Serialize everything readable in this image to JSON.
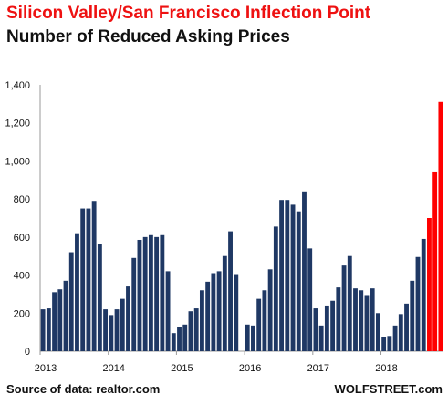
{
  "chart_data": {
    "type": "bar",
    "title": "Silicon Valley/San Francisco Inflection Point",
    "subtitle": "Number of Reduced Asking Prices",
    "source": "Source of data: realtor.com",
    "brand": "WOLFSTREET.com",
    "ylim": [
      0,
      1400
    ],
    "y_ticks": [
      0,
      200,
      400,
      600,
      800,
      1000,
      1200,
      1400
    ],
    "y_tick_labels": [
      "0",
      "200",
      "400",
      "600",
      "800",
      "1,000",
      "1,200",
      "1,400"
    ],
    "x_tick_labels": [
      "2013",
      "2014",
      "2015",
      "2016",
      "2017",
      "2018"
    ],
    "grid": false,
    "colors": {
      "normal": "#1f3864",
      "highlight": "#ff0000"
    },
    "values": [
      220,
      225,
      310,
      325,
      370,
      520,
      620,
      750,
      750,
      790,
      565,
      220,
      190,
      220,
      275,
      340,
      490,
      585,
      600,
      610,
      600,
      610,
      420,
      95,
      125,
      140,
      210,
      225,
      320,
      365,
      410,
      420,
      500,
      630,
      405,
      0,
      140,
      135,
      275,
      320,
      430,
      655,
      795,
      795,
      770,
      735,
      840,
      540,
      225,
      135,
      240,
      265,
      335,
      450,
      500,
      330,
      320,
      295,
      330,
      200,
      75,
      80,
      135,
      195,
      250,
      370,
      495,
      590,
      700,
      940,
      1310
    ],
    "highlight_last": 3
  }
}
